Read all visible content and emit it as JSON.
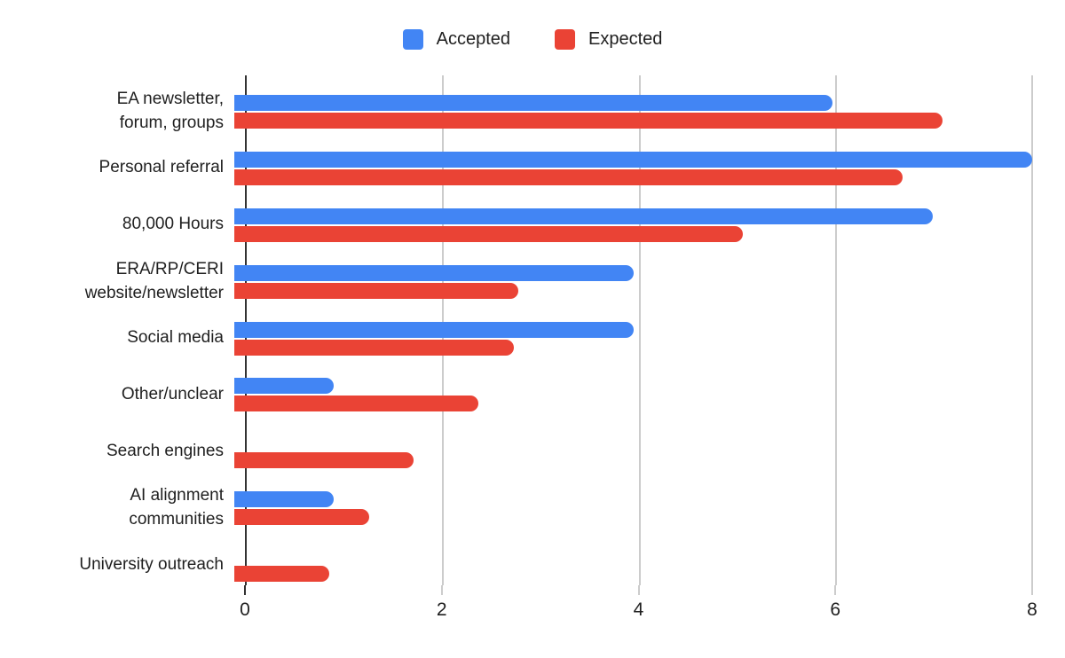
{
  "legend": {
    "items": [
      {
        "label": "Accepted",
        "color": "#4285F4"
      },
      {
        "label": "Expected",
        "color": "#EA4335"
      }
    ]
  },
  "chart_data": {
    "type": "bar",
    "orientation": "horizontal",
    "title": "",
    "xlabel": "",
    "ylabel": "",
    "xlim": [
      0,
      8
    ],
    "x_ticks": [
      0,
      2,
      4,
      6,
      8
    ],
    "grid": true,
    "legend_position": "top",
    "categories": [
      {
        "label": "EA newsletter, forum, groups",
        "lines": [
          "EA newsletter,",
          "forum, groups"
        ]
      },
      {
        "label": "Personal referral",
        "lines": [
          "Personal referral"
        ]
      },
      {
        "label": "80,000 Hours",
        "lines": [
          "80,000 Hours"
        ]
      },
      {
        "label": "ERA/RP/CERI website/newsletter",
        "lines": [
          "ERA/RP/CERI",
          "website/newsletter"
        ]
      },
      {
        "label": "Social media",
        "lines": [
          "Social media"
        ]
      },
      {
        "label": "Other/unclear",
        "lines": [
          "Other/unclear"
        ]
      },
      {
        "label": "Search engines",
        "lines": [
          "Search engines"
        ]
      },
      {
        "label": "AI alignment communities",
        "lines": [
          "AI alignment",
          "communities"
        ]
      },
      {
        "label": "University outreach",
        "lines": [
          "University outreach"
        ]
      }
    ],
    "series": [
      {
        "name": "Accepted",
        "color": "#4285F4",
        "values": [
          6,
          8,
          7,
          4,
          4,
          1,
          0,
          1,
          0
        ]
      },
      {
        "name": "Expected",
        "color": "#EA4335",
        "values": [
          7.1,
          6.7,
          5.1,
          2.85,
          2.8,
          2.45,
          1.8,
          1.35,
          0.95
        ]
      }
    ],
    "colors": {
      "accepted": "#4285F4",
      "expected": "#EA4335",
      "gridline": "#cccccc",
      "axis": "#333333"
    }
  }
}
